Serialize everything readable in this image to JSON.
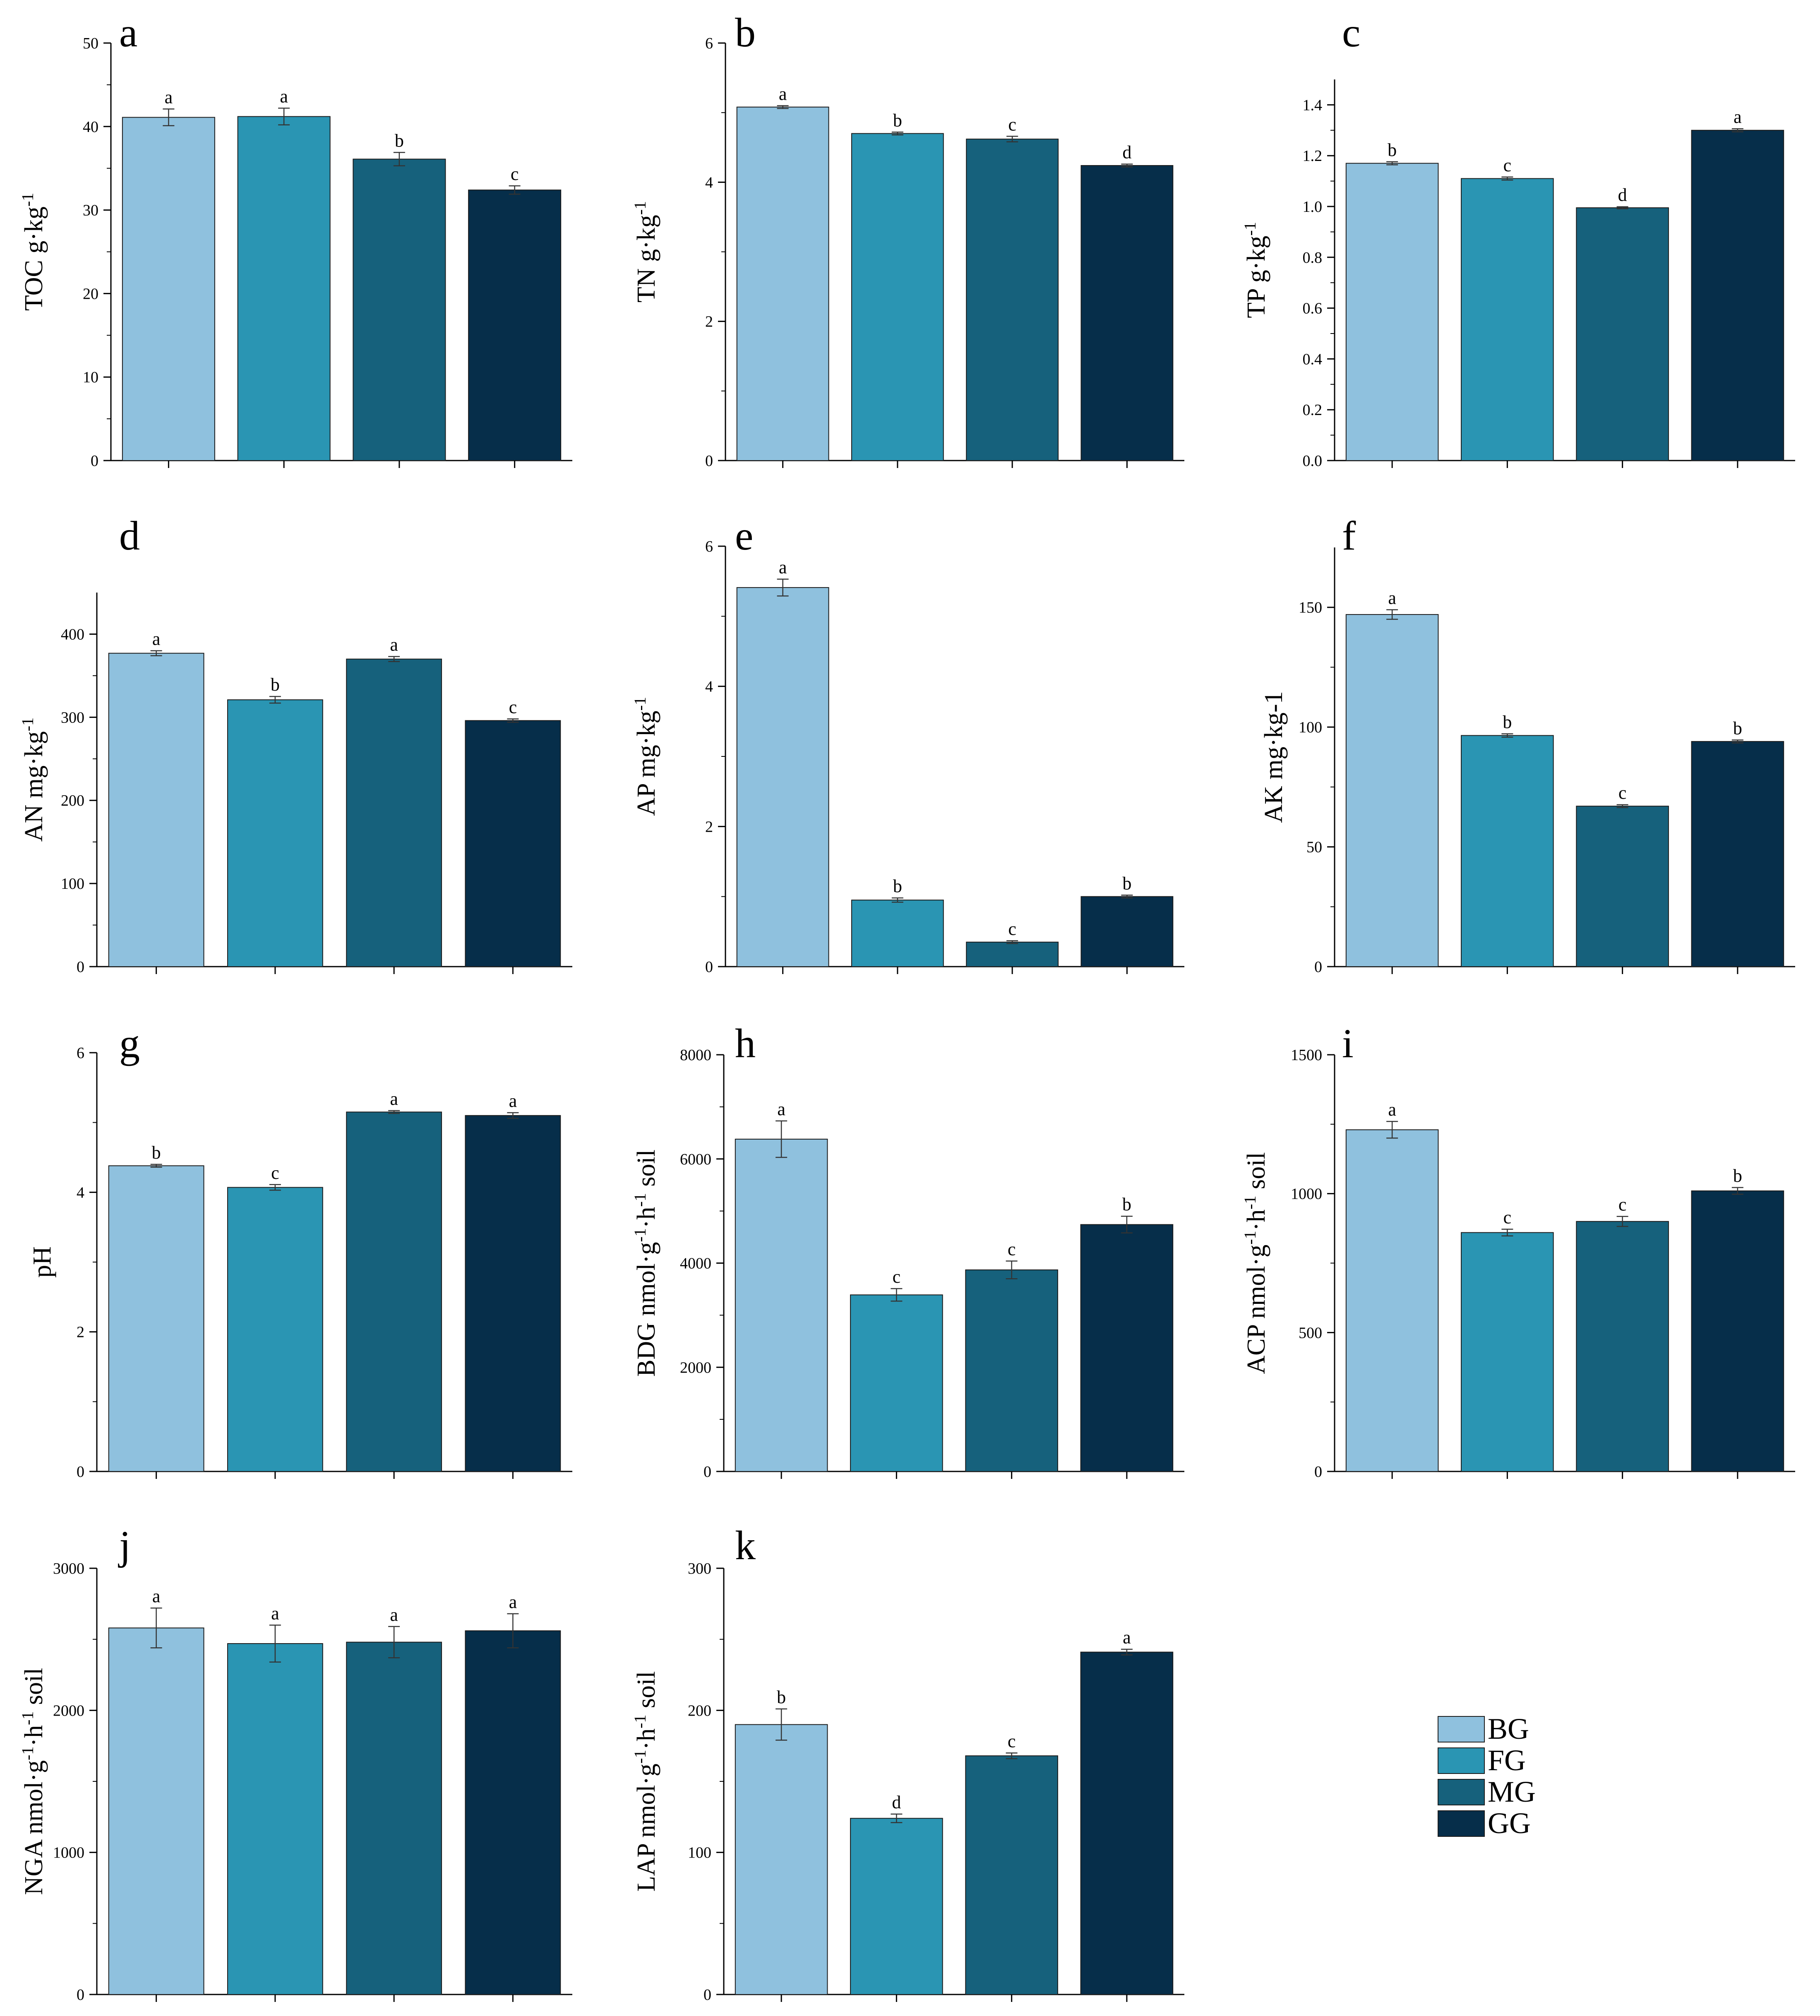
{
  "colors": {
    "BG": "#8fc1de",
    "FG": "#2a95b3",
    "MG": "#16617c",
    "GG": "#062e4a",
    "axis": "#000000",
    "bar_edge": "#1a1a1a"
  },
  "legend": {
    "items": [
      {
        "key": "BG",
        "label": "BG"
      },
      {
        "key": "FG",
        "label": "FG"
      },
      {
        "key": "MG",
        "label": "MG"
      },
      {
        "key": "GG",
        "label": "GG"
      }
    ]
  },
  "chart_data": [
    {
      "type": "bar",
      "panel": "a",
      "ylabel": "TOC g·kg",
      "ylabel_sup": "-1",
      "ylim": [
        0,
        50
      ],
      "yticks": [
        "0",
        "10",
        "20",
        "30",
        "40",
        "50"
      ],
      "categories": [
        "BG",
        "FG",
        "MG",
        "GG"
      ],
      "values": [
        41.1,
        41.2,
        36.1,
        32.4
      ],
      "errors": [
        1.0,
        1.0,
        0.8,
        0.5
      ],
      "letters": [
        "a",
        "a",
        "b",
        "c"
      ]
    },
    {
      "type": "bar",
      "panel": "b",
      "ylabel": "TN g·kg",
      "ylabel_sup": "-1",
      "ylim": [
        0,
        6
      ],
      "yticks": [
        "0",
        "2",
        "4",
        "6"
      ],
      "categories": [
        "BG",
        "FG",
        "MG",
        "GG"
      ],
      "values": [
        5.08,
        4.7,
        4.62,
        4.24
      ],
      "errors": [
        0.02,
        0.02,
        0.04,
        0.02
      ],
      "letters": [
        "a",
        "b",
        "c",
        "d"
      ]
    },
    {
      "type": "bar",
      "panel": "c",
      "ylabel": "TP g·kg",
      "ylabel_sup": "-1",
      "ylim": [
        0,
        1.5
      ],
      "yticks": [
        "0.0",
        "0.2",
        "0.4",
        "0.6",
        "0.8",
        "1.0",
        "1.2",
        "1.4"
      ],
      "categories": [
        "BG",
        "FG",
        "MG",
        "GG"
      ],
      "values": [
        1.17,
        1.11,
        0.995,
        1.3
      ],
      "errors": [
        0.006,
        0.006,
        0.004,
        0.006
      ],
      "letters": [
        "b",
        "c",
        "d",
        "a"
      ]
    },
    {
      "type": "bar",
      "panel": "d",
      "ylabel": "AN mg·kg",
      "ylabel_sup": "-1",
      "ylim": [
        0,
        450
      ],
      "yticks": [
        "0",
        "100",
        "200",
        "300",
        "400"
      ],
      "categories": [
        "BG",
        "FG",
        "MG",
        "GG"
      ],
      "values": [
        377,
        321,
        370,
        296
      ],
      "errors": [
        3,
        4,
        3,
        2
      ],
      "letters": [
        "a",
        "b",
        "a",
        "c"
      ]
    },
    {
      "type": "bar",
      "panel": "e",
      "ylabel": "AP mg·kg",
      "ylabel_sup": "-1",
      "ylim": [
        0,
        6
      ],
      "yticks": [
        "0",
        "2",
        "4",
        "6"
      ],
      "categories": [
        "BG",
        "FG",
        "MG",
        "GG"
      ],
      "values": [
        5.41,
        0.95,
        0.35,
        1.0
      ],
      "errors": [
        0.12,
        0.03,
        0.02,
        0.02
      ],
      "letters": [
        "a",
        "b",
        "c",
        "b"
      ]
    },
    {
      "type": "bar",
      "panel": "f",
      "ylabel": "AK mg·kg-1",
      "ylabel_sup": "",
      "ylim": [
        0,
        175
      ],
      "yticks": [
        "0",
        "50",
        "100",
        "150"
      ],
      "categories": [
        "BG",
        "FG",
        "MG",
        "GG"
      ],
      "values": [
        147,
        96.5,
        67,
        94
      ],
      "errors": [
        2,
        0.7,
        0.6,
        0.6
      ],
      "letters": [
        "a",
        "b",
        "c",
        "b"
      ]
    },
    {
      "type": "bar",
      "panel": "g",
      "ylabel": "pH",
      "ylabel_sup": "",
      "ylim": [
        0,
        6
      ],
      "yticks": [
        "0",
        "2",
        "4",
        "6"
      ],
      "categories": [
        "BG",
        "FG",
        "MG",
        "GG"
      ],
      "values": [
        4.38,
        4.07,
        5.15,
        5.1
      ],
      "errors": [
        0.02,
        0.04,
        0.02,
        0.04
      ],
      "letters": [
        "b",
        "c",
        "a",
        "a"
      ]
    },
    {
      "type": "bar",
      "panel": "h",
      "ylabel": "BDG nmol·g",
      "ylabel_sup": "-1",
      "ylabel_mid": "·h",
      "ylabel_sup2": "-1",
      "ylabel_end": " soil",
      "ylim": [
        0,
        8000
      ],
      "yticks": [
        "0",
        "2000",
        "4000",
        "6000",
        "8000"
      ],
      "categories": [
        "BG",
        "FG",
        "MG",
        "GG"
      ],
      "values": [
        6380,
        3390,
        3870,
        4740
      ],
      "errors": [
        350,
        120,
        170,
        160
      ],
      "letters": [
        "a",
        "c",
        "c",
        "b"
      ]
    },
    {
      "type": "bar",
      "panel": "i",
      "ylabel": "ACP nmol·g",
      "ylabel_sup": "-1",
      "ylabel_mid": "·h",
      "ylabel_sup2": "-1",
      "ylabel_end": " soil",
      "ylim": [
        0,
        1500
      ],
      "yticks": [
        "0",
        "500",
        "1000",
        "1500"
      ],
      "categories": [
        "BG",
        "FG",
        "MG",
        "GG"
      ],
      "values": [
        1230,
        860,
        900,
        1010
      ],
      "errors": [
        30,
        12,
        18,
        12
      ],
      "letters": [
        "a",
        "c",
        "c",
        "b"
      ]
    },
    {
      "type": "bar",
      "panel": "j",
      "ylabel": "NGA nmol·g",
      "ylabel_sup": "-1",
      "ylabel_mid": "·h",
      "ylabel_sup2": "-1",
      "ylabel_end": " soil",
      "ylim": [
        0,
        3000
      ],
      "yticks": [
        "0",
        "1000",
        "2000",
        "3000"
      ],
      "categories": [
        "BG",
        "FG",
        "MG",
        "GG"
      ],
      "values": [
        2580,
        2470,
        2480,
        2560
      ],
      "errors": [
        140,
        130,
        110,
        120
      ],
      "letters": [
        "a",
        "a",
        "a",
        "a"
      ]
    },
    {
      "type": "bar",
      "panel": "k",
      "ylabel": "LAP nmol·g",
      "ylabel_sup": "-1",
      "ylabel_mid": "·h",
      "ylabel_sup2": "-1",
      "ylabel_end": " soil",
      "ylim": [
        0,
        300
      ],
      "yticks": [
        "0",
        "100",
        "200",
        "300"
      ],
      "categories": [
        "BG",
        "FG",
        "MG",
        "GG"
      ],
      "values": [
        190,
        124,
        168,
        241
      ],
      "errors": [
        11,
        3,
        2,
        2
      ],
      "letters": [
        "b",
        "d",
        "c",
        "a"
      ]
    }
  ]
}
